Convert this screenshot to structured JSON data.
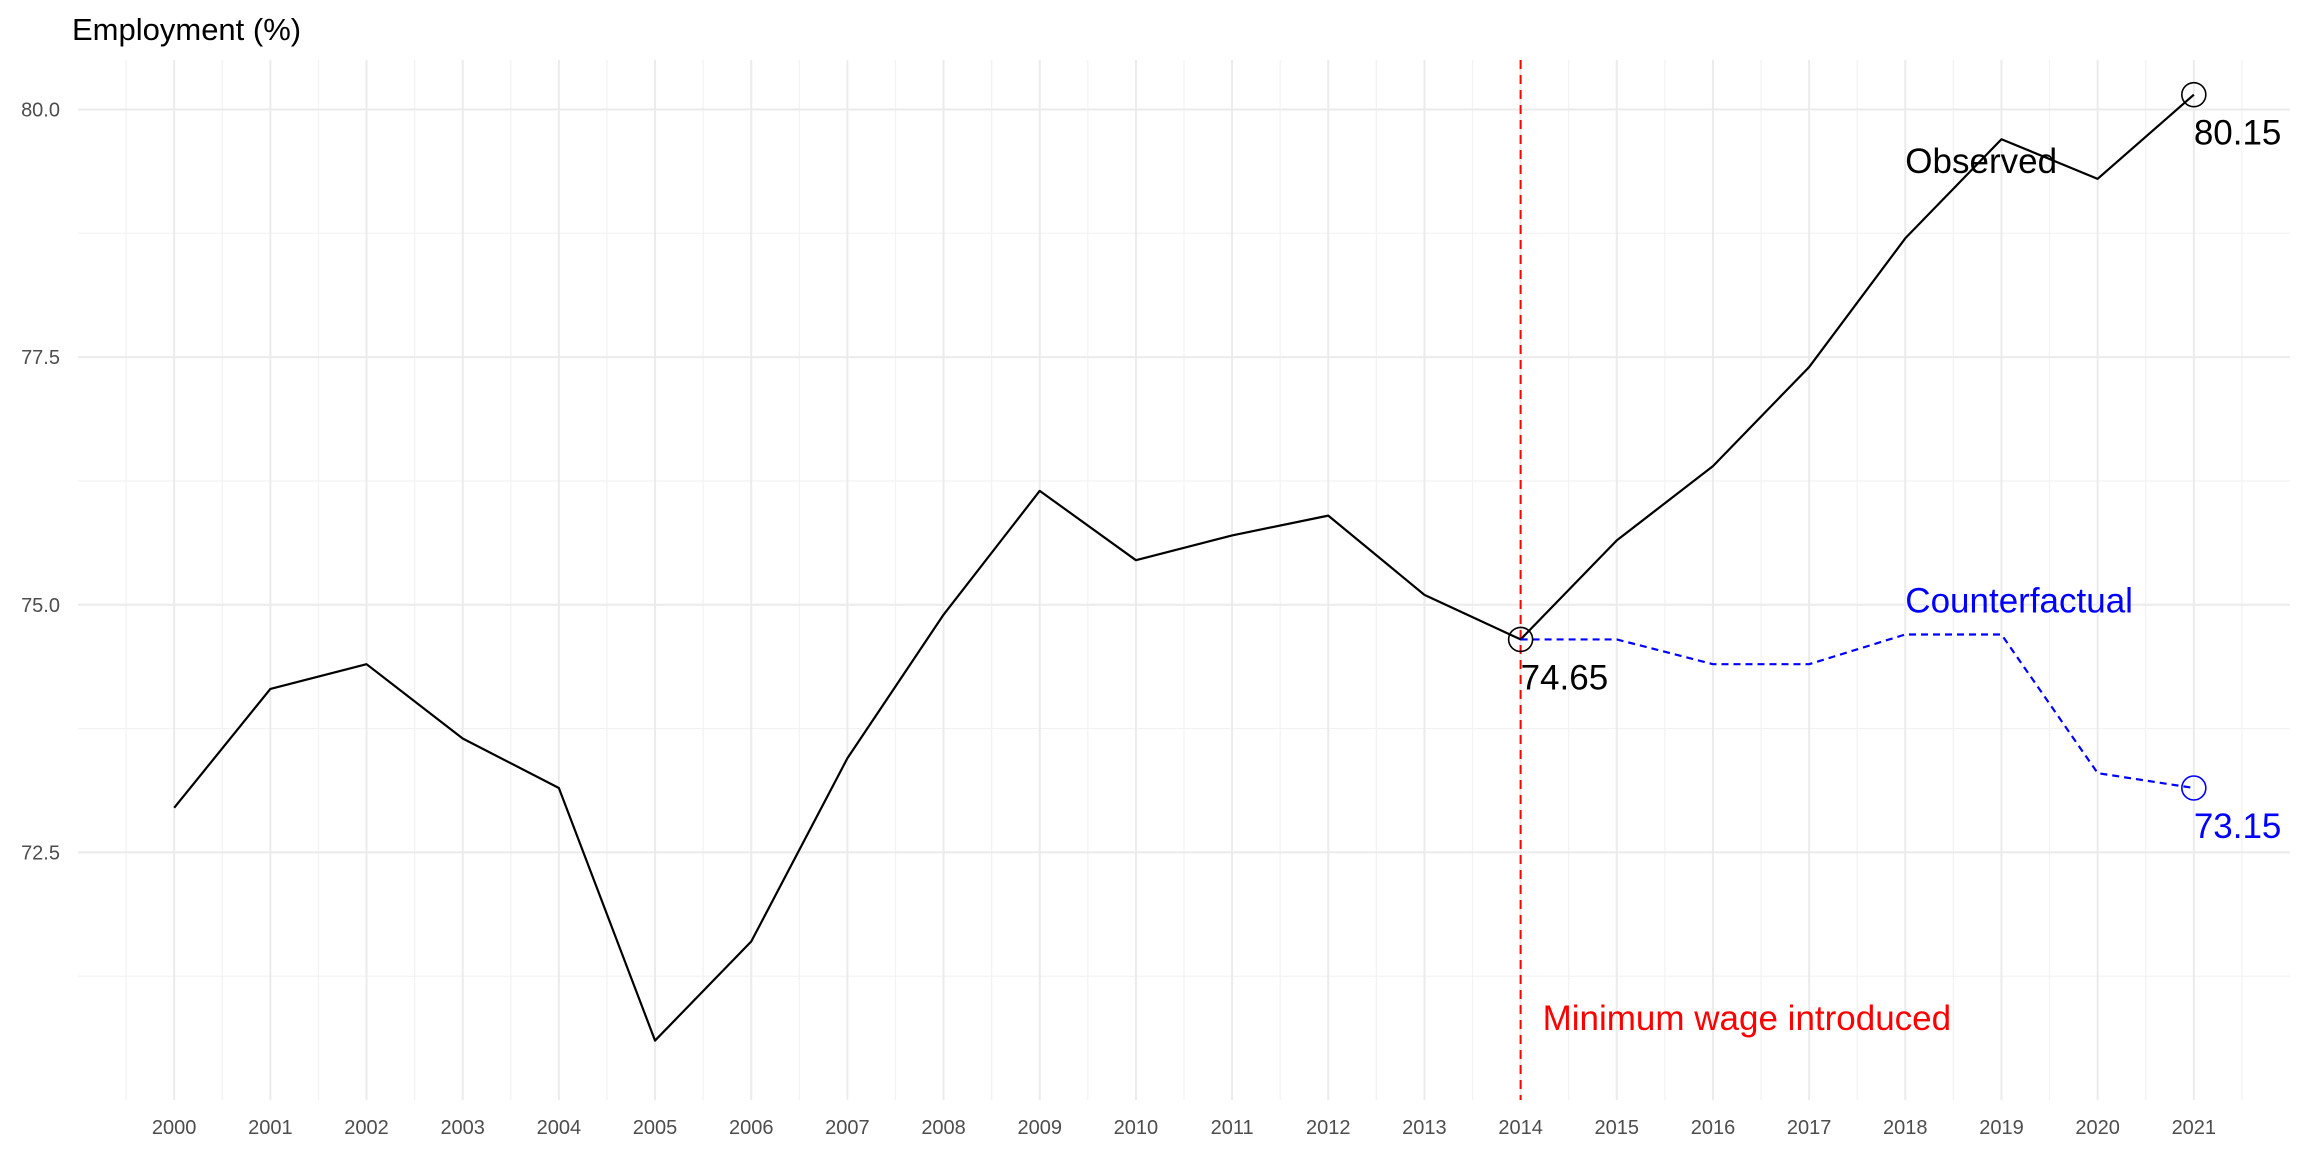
{
  "chart_data": {
    "type": "line",
    "title": "",
    "xlabel": "",
    "ylabel": "Employment (%)",
    "x": [
      2000,
      2001,
      2002,
      2003,
      2004,
      2005,
      2006,
      2007,
      2008,
      2009,
      2010,
      2011,
      2012,
      2013,
      2014,
      2015,
      2016,
      2017,
      2018,
      2019,
      2020,
      2021
    ],
    "xlim": [
      1999,
      2022
    ],
    "ylim": [
      70.0,
      80.5
    ],
    "yticks": [
      72.5,
      75.0,
      77.5,
      80.0
    ],
    "ytick_labels": [
      "72.5",
      "75.0",
      "77.5",
      "80.0"
    ],
    "grid": true,
    "series": [
      {
        "name": "Observed",
        "style": "solid",
        "color": "#000000",
        "x": [
          2000,
          2001,
          2002,
          2003,
          2004,
          2005,
          2006,
          2007,
          2008,
          2009,
          2010,
          2011,
          2012,
          2013,
          2014,
          2015,
          2016,
          2017,
          2018,
          2019,
          2020,
          2021
        ],
        "values": [
          72.95,
          74.15,
          74.4,
          73.65,
          73.15,
          70.6,
          71.6,
          73.45,
          74.9,
          76.15,
          75.45,
          75.7,
          75.9,
          75.1,
          74.65,
          75.65,
          76.4,
          77.4,
          78.7,
          79.7,
          79.3,
          80.15
        ]
      },
      {
        "name": "Counterfactual",
        "style": "dashed",
        "color": "#0000ff",
        "x": [
          2014,
          2015,
          2016,
          2017,
          2018,
          2019,
          2020,
          2021
        ],
        "values": [
          74.65,
          74.65,
          74.4,
          74.4,
          74.7,
          74.7,
          73.3,
          73.15
        ]
      }
    ],
    "vline": {
      "x": 2014,
      "label": "Minimum wage introduced",
      "color": "#ff0000"
    },
    "point_labels": [
      {
        "x": 2014,
        "y": 74.65,
        "text": "74.65",
        "color": "#000000"
      },
      {
        "x": 2021,
        "y": 80.15,
        "text": "80.15",
        "color": "#000000"
      },
      {
        "x": 2021,
        "y": 73.15,
        "text": "73.15",
        "color": "#0000ff"
      }
    ],
    "colors": {
      "observed": "#000000",
      "counterfactual": "#0000ff",
      "intervention": "#ff0000"
    }
  }
}
